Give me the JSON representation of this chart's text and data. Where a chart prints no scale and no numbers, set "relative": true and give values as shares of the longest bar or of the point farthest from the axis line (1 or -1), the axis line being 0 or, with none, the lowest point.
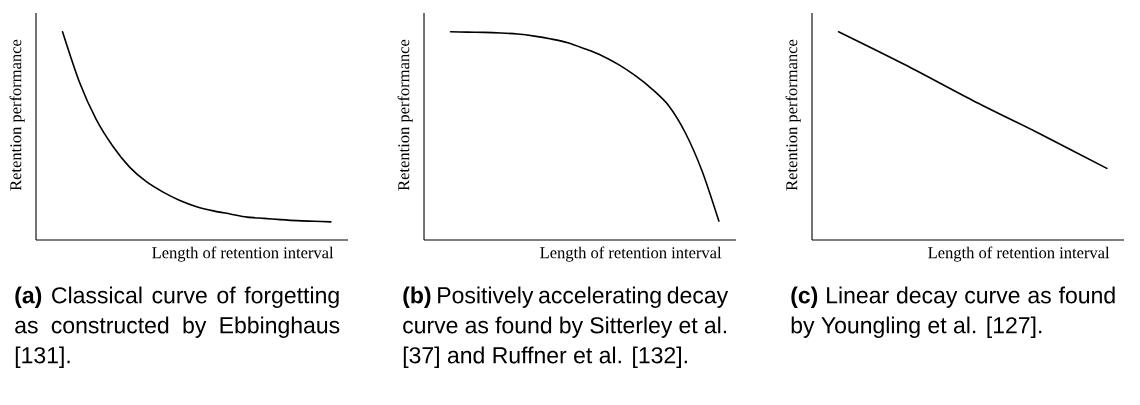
{
  "chart_data": [
    {
      "type": "line",
      "xlabel": "Length of retention interval",
      "ylabel": "Retention performance",
      "relative": true,
      "categories": [
        null,
        null,
        null,
        null,
        null,
        null,
        null,
        null,
        null,
        null,
        null,
        null,
        null,
        null,
        null,
        null,
        null
      ],
      "values": [
        1,
        0.76,
        0.58,
        0.45,
        0.35,
        0.28,
        0.23,
        0.19,
        0.16,
        0.14,
        0.125,
        0.11,
        0.104,
        0.098,
        0.093,
        0.09,
        0.087
      ],
      "color": "#000000",
      "annotations": [
        "**(a)** Classical curve of forgetting as constructed by Ebbinghaus [131]."
      ]
    },
    {
      "type": "line",
      "xlabel": "Length of retention interval",
      "ylabel": "Retention performance",
      "relative": true,
      "categories": [
        null,
        null,
        null,
        null,
        null,
        null,
        null,
        null,
        null,
        null,
        null,
        null,
        null,
        null,
        null,
        null,
        null
      ],
      "values": [
        1,
        0.998,
        0.997,
        0.994,
        0.989,
        0.979,
        0.965,
        0.947,
        0.918,
        0.886,
        0.843,
        0.79,
        0.726,
        0.646,
        0.515,
        0.331,
        0.091
      ],
      "color": "#000000",
      "annotations": [
        "**(b)** Positively accelerating decay curve as found by Sitterley et al. [37] and Ruffner et al. [132]."
      ]
    },
    {
      "type": "line",
      "xlabel": "Length of retention interval",
      "ylabel": "Retention performance",
      "relative": true,
      "categories": [
        null,
        null,
        null,
        null,
        null
      ],
      "values": [
        1,
        0.84,
        0.67,
        0.51,
        0.344
      ],
      "color": "#000000",
      "annotations": [
        "**(c)** Linear decay curve as found by Youngling et al. [127]."
      ]
    }
  ]
}
